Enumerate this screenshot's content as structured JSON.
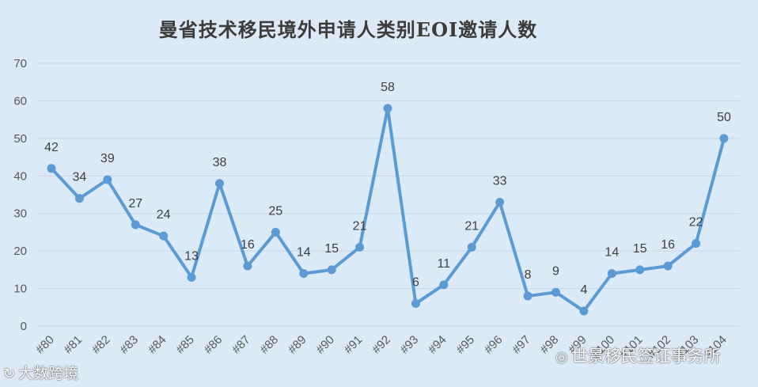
{
  "chart_data": {
    "type": "line",
    "title": "曼省技术移民境外申请人类别EOI邀请人数",
    "xlabel": "",
    "ylabel": "",
    "ylim": [
      0,
      70
    ],
    "yticks": [
      0,
      10,
      20,
      30,
      40,
      50,
      60,
      70
    ],
    "grid": true,
    "legend": "none",
    "series_color": "#5b9bd5",
    "categories": [
      "#80",
      "#81",
      "#82",
      "#83",
      "#84",
      "#85",
      "#86",
      "#87",
      "#88",
      "#89",
      "#90",
      "#91",
      "#92",
      "#93",
      "#94",
      "#95",
      "#96",
      "#97",
      "#98",
      "#99",
      "#100",
      "#101",
      "#102",
      "#103",
      "#104"
    ],
    "values": [
      42,
      34,
      39,
      27,
      24,
      13,
      38,
      16,
      25,
      14,
      15,
      21,
      58,
      6,
      11,
      21,
      33,
      8,
      9,
      4,
      14,
      15,
      16,
      22,
      50
    ]
  },
  "watermarks": {
    "left_text": "大数跨境",
    "right_text": "世景移民签证事务所"
  }
}
